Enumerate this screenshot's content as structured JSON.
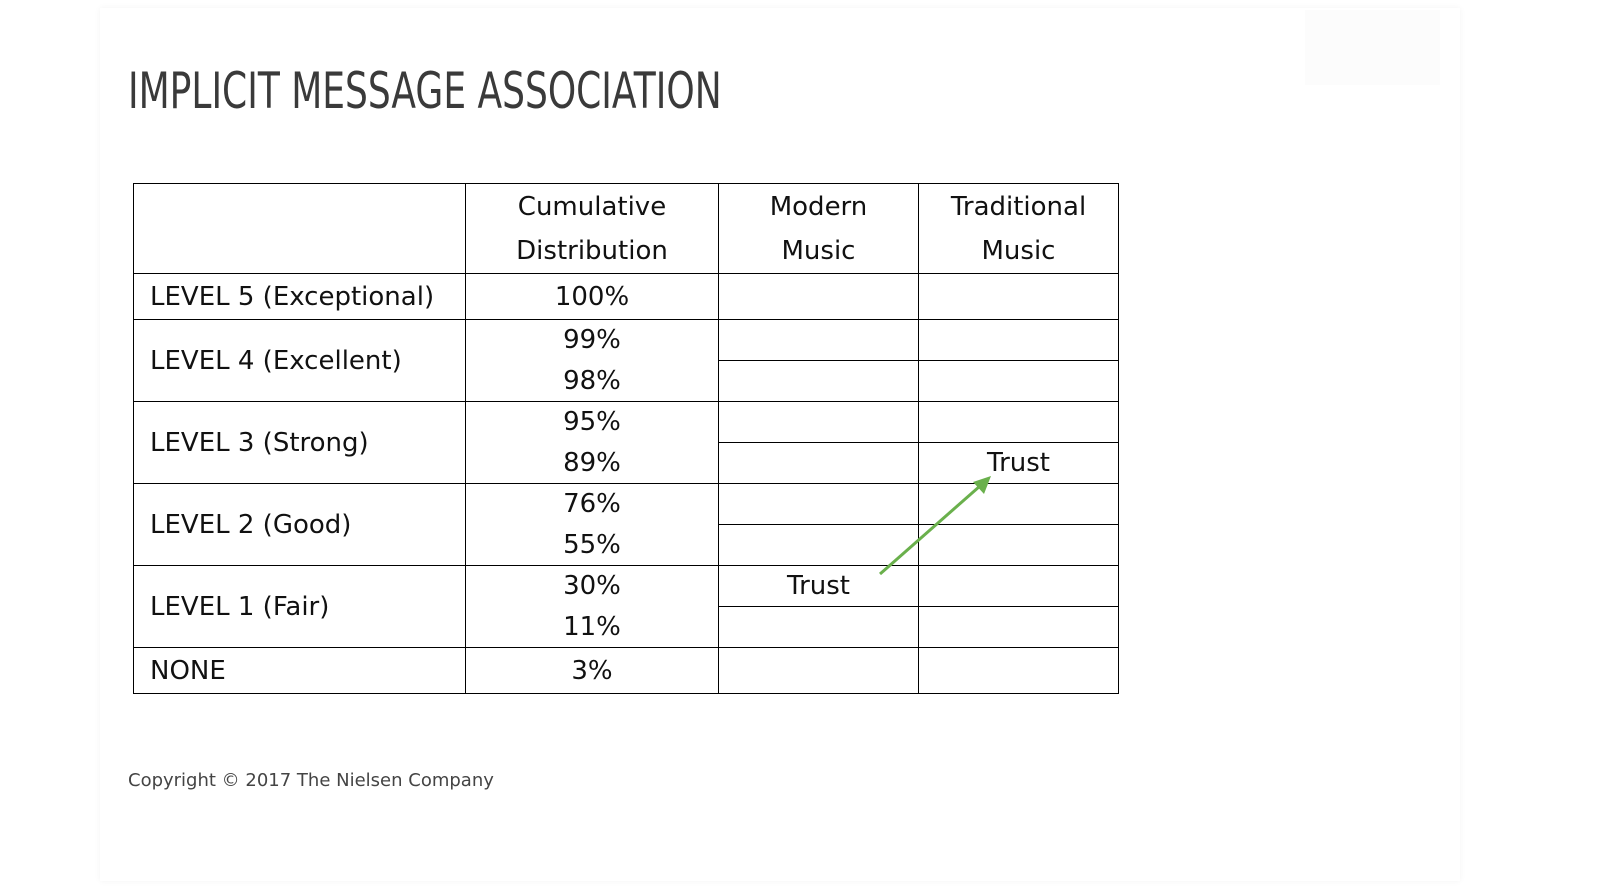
{
  "slide": {
    "title": "IMPLICIT MESSAGE ASSOCIATION",
    "copyright": "Copyright © 2017 The Nielsen Company"
  },
  "table": {
    "headers": {
      "col1": [
        "Cumulative",
        "Distribution"
      ],
      "col2": [
        "Modern",
        "Music"
      ],
      "col3": [
        "Traditional",
        "Music"
      ]
    },
    "rows": {
      "level5": {
        "label": "LEVEL 5 (Exceptional)",
        "values": [
          "100%"
        ]
      },
      "level4": {
        "label": "LEVEL 4 (Excellent)",
        "values": [
          "99%",
          "98%"
        ]
      },
      "level3": {
        "label": "LEVEL 3 (Strong)",
        "values": [
          "95%",
          "89%"
        ]
      },
      "level2": {
        "label": "LEVEL 2 (Good)",
        "values": [
          "76%",
          "55%"
        ]
      },
      "level1": {
        "label": "LEVEL 1 (Fair)",
        "values": [
          "30%",
          "11%"
        ]
      },
      "none": {
        "label": "NONE",
        "values": [
          "3%"
        ]
      }
    },
    "markers": {
      "modern": "Trust",
      "traditional": "Trust"
    },
    "arrow_color": "#6ab04c"
  }
}
